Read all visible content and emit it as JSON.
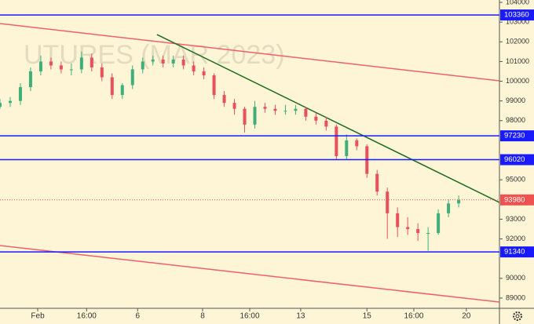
{
  "chart_data": {
    "type": "candlestick",
    "watermark": "UTURES (MAR 2023)",
    "x": [
      0,
      2,
      4,
      6,
      8,
      10,
      12,
      14,
      16,
      18,
      20,
      22,
      24,
      26,
      28,
      30,
      32,
      34,
      36,
      38,
      40,
      42,
      44,
      46,
      48,
      50,
      52,
      54,
      56,
      58,
      60,
      62,
      64,
      66,
      68,
      70,
      72,
      74,
      76,
      78,
      80,
      82,
      84,
      86,
      88,
      90
    ],
    "open": [
      98700,
      98900,
      99000,
      99700,
      100500,
      101000,
      100800,
      100600,
      100600,
      101200,
      100700,
      100200,
      99300,
      99800,
      100600,
      101000,
      101100,
      100900,
      101100,
      100800,
      100500,
      100300,
      99300,
      98900,
      98600,
      97800,
      98700,
      98600,
      98500,
      98500,
      98600,
      98200,
      98000,
      97700,
      96200,
      97000,
      96700,
      95300,
      94400,
      93300,
      92600,
      92500,
      92300,
      92300,
      93300,
      93800
    ],
    "high": [
      99100,
      99200,
      99900,
      100700,
      101300,
      101200,
      101000,
      100900,
      101500,
      101400,
      100900,
      100400,
      99900,
      100800,
      101200,
      101300,
      101300,
      101300,
      101300,
      101000,
      100700,
      100400,
      99500,
      99100,
      98700,
      99000,
      98900,
      98800,
      98800,
      98800,
      98700,
      98400,
      98200,
      97800,
      97300,
      97100,
      96800,
      95500,
      94600,
      93600,
      93100,
      92800,
      92600,
      93500,
      94000,
      94200
    ],
    "low": [
      98600,
      98700,
      98800,
      99500,
      100300,
      100600,
      100400,
      100300,
      100400,
      100500,
      100000,
      99100,
      99100,
      99600,
      100400,
      100800,
      100700,
      100700,
      100600,
      100300,
      100100,
      99100,
      98700,
      98300,
      97400,
      97600,
      98400,
      98300,
      98300,
      98300,
      98000,
      97800,
      97500,
      96000,
      96000,
      96500,
      95100,
      94200,
      92000,
      92100,
      92200,
      91900,
      91400,
      92200,
      93100,
      93600
    ],
    "close": [
      98900,
      99000,
      99700,
      100500,
      101000,
      100800,
      100600,
      100600,
      101200,
      100700,
      100200,
      99300,
      99800,
      100600,
      101000,
      101100,
      100900,
      101100,
      100800,
      100500,
      100300,
      99300,
      98900,
      98600,
      97800,
      98700,
      98600,
      98500,
      98500,
      98600,
      98200,
      98000,
      97700,
      96200,
      97000,
      96700,
      95300,
      94400,
      93300,
      92600,
      92500,
      92300,
      92300,
      93300,
      93800,
      93980
    ],
    "up_color": "#3fae7a",
    "down_color": "#e8505b",
    "xlim": [
      0,
      98
    ],
    "ylim": [
      88480,
      104120
    ],
    "xticks": [
      {
        "value": 7.4,
        "label": "Feb"
      },
      {
        "value": 17,
        "label": "16:00"
      },
      {
        "value": 27,
        "label": "6"
      },
      {
        "value": 39.75,
        "label": "8"
      },
      {
        "value": 49,
        "label": "16:00"
      },
      {
        "value": 59,
        "label": "13"
      },
      {
        "value": 72,
        "label": "15"
      },
      {
        "value": 81.2,
        "label": "16:00"
      },
      {
        "value": 91.5,
        "label": "20"
      }
    ],
    "yticks": [
      89000,
      90000,
      92000,
      93000,
      95000,
      98000,
      99000,
      100000,
      101000,
      102000,
      103000,
      104000
    ],
    "levels": [
      103360,
      97230,
      96020,
      91340
    ],
    "level_color": "#1a1aff",
    "last_price": 93980,
    "last_color": "#ef5350",
    "trendlines": [
      {
        "x": [
          0,
          98
        ],
        "y": [
          102925,
          100020
        ],
        "color": "#f0606a"
      },
      {
        "x": [
          0,
          98
        ],
        "y": [
          91662,
          88796
        ],
        "color": "#f0606a"
      },
      {
        "x": [
          30.8,
          98
        ],
        "y": [
          102368,
          93850
        ],
        "color": "#1f6b1f"
      }
    ]
  }
}
